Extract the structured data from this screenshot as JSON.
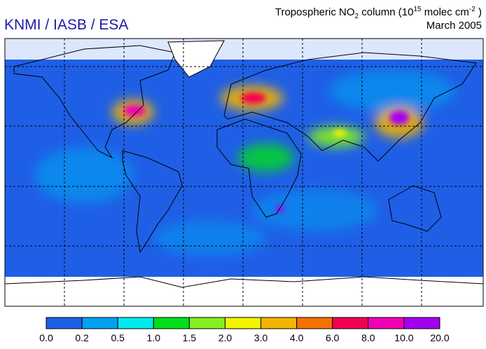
{
  "header": {
    "credit": "KNMI / IASB / ESA",
    "title": {
      "parts": [
        "Tropospheric NO",
        "2",
        " column (10",
        "15",
        " molec cm",
        "-2",
        " )"
      ]
    },
    "date": "March 2005"
  },
  "colorbar": {
    "colors": [
      "#1f5fe6",
      "#00a2f2",
      "#00eaf0",
      "#00de1c",
      "#84f01e",
      "#f4f400",
      "#f4b400",
      "#f47200",
      "#f20052",
      "#f000b4",
      "#a400f0"
    ],
    "labels": [
      "0.0",
      "0.2",
      "0.5",
      "1.0",
      "1.5",
      "2.0",
      "3.0",
      "4.0",
      "6.0",
      "8.0",
      "10.0",
      "20.0"
    ]
  }
}
